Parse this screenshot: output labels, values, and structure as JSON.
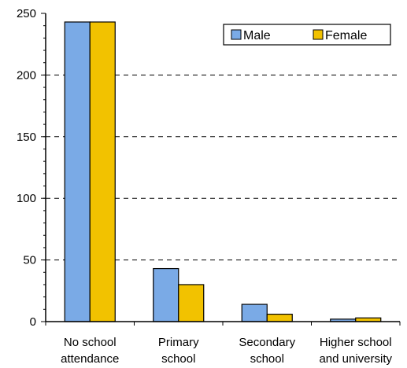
{
  "chart_data": {
    "type": "bar",
    "title": "",
    "xlabel": "",
    "ylabel": "",
    "categories": [
      [
        "No school",
        "attendance"
      ],
      [
        "Primary",
        "school"
      ],
      [
        "Secondary",
        "school"
      ],
      [
        "Higher school",
        "and university"
      ]
    ],
    "series": [
      {
        "name": "Male",
        "values": [
          243,
          43,
          14,
          2
        ],
        "color": "#7aaae6"
      },
      {
        "name": "Female",
        "values": [
          243,
          30,
          6,
          3
        ],
        "color": "#f2c200"
      }
    ],
    "ylim": [
      0,
      250
    ],
    "yticks": [
      0,
      50,
      100,
      150,
      200,
      250
    ],
    "grid": true,
    "grid_style": "dashed",
    "legend_position": "top-right"
  }
}
